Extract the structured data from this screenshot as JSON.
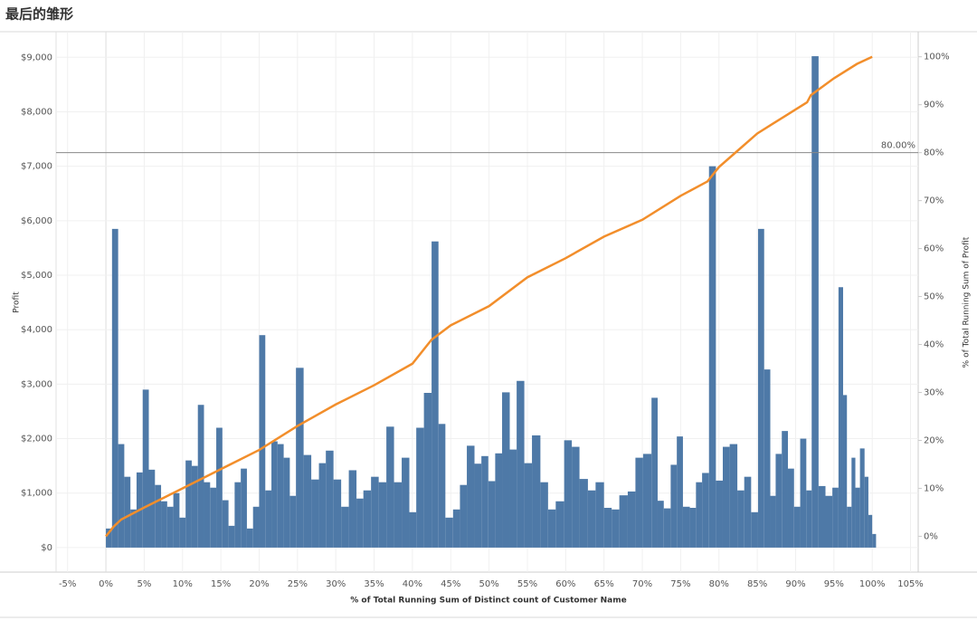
{
  "chart_data": {
    "type": "pareto",
    "title": "最后的雏形",
    "x_label": "% of Total Running Sum of Distinct count of Customer Name",
    "y_label": "Profit",
    "y2_label": "% of Total Running Sum of Profit",
    "xlim": [
      -6.5,
      106
    ],
    "ylim": [
      -450,
      9470
    ],
    "y2lim": [
      -7.47,
      105.23
    ],
    "grid": true,
    "xticks": [
      {
        "value": -5,
        "label": "-5%"
      },
      {
        "value": 0,
        "label": "0%"
      },
      {
        "value": 5,
        "label": "5%"
      },
      {
        "value": 10,
        "label": "10%"
      },
      {
        "value": 15,
        "label": "15%"
      },
      {
        "value": 20,
        "label": "20%"
      },
      {
        "value": 25,
        "label": "25%"
      },
      {
        "value": 30,
        "label": "30%"
      },
      {
        "value": 35,
        "label": "35%"
      },
      {
        "value": 40,
        "label": "40%"
      },
      {
        "value": 45,
        "label": "45%"
      },
      {
        "value": 50,
        "label": "50%"
      },
      {
        "value": 55,
        "label": "55%"
      },
      {
        "value": 60,
        "label": "60%"
      },
      {
        "value": 65,
        "label": "65%"
      },
      {
        "value": 70,
        "label": "70%"
      },
      {
        "value": 75,
        "label": "75%"
      },
      {
        "value": 80,
        "label": "80%"
      },
      {
        "value": 85,
        "label": "85%"
      },
      {
        "value": 90,
        "label": "90%"
      },
      {
        "value": 95,
        "label": "95%"
      },
      {
        "value": 100,
        "label": "100%"
      },
      {
        "value": 105,
        "label": "105%"
      }
    ],
    "yticks": [
      {
        "value": 0,
        "label": "$0"
      },
      {
        "value": 1000,
        "label": "$1,000"
      },
      {
        "value": 2000,
        "label": "$2,000"
      },
      {
        "value": 3000,
        "label": "$3,000"
      },
      {
        "value": 4000,
        "label": "$4,000"
      },
      {
        "value": 5000,
        "label": "$5,000"
      },
      {
        "value": 6000,
        "label": "$6,000"
      },
      {
        "value": 7000,
        "label": "$7,000"
      },
      {
        "value": 8000,
        "label": "$8,000"
      },
      {
        "value": 9000,
        "label": "$9,000"
      }
    ],
    "y2ticks": [
      {
        "value": 0,
        "label": "0%"
      },
      {
        "value": 10,
        "label": "10%"
      },
      {
        "value": 20,
        "label": "20%"
      },
      {
        "value": 30,
        "label": "30%"
      },
      {
        "value": 40,
        "label": "40%"
      },
      {
        "value": 50,
        "label": "50%"
      },
      {
        "value": 60,
        "label": "60%"
      },
      {
        "value": 70,
        "label": "70%"
      },
      {
        "value": 80,
        "label": "80%"
      },
      {
        "value": 90,
        "label": "90%"
      },
      {
        "value": 100,
        "label": "100%"
      }
    ],
    "reference_line": {
      "value": 80,
      "label": "80.00%",
      "axis": "y2"
    },
    "series": [
      {
        "name": "Profit",
        "type": "bar",
        "color": "#4e79a7",
        "x": [
          0.0,
          0.8,
          1.6,
          2.4,
          3.2,
          4.0,
          4.8,
          5.6,
          6.4,
          7.2,
          8.0,
          8.8,
          9.6,
          10.4,
          11.2,
          12.0,
          12.8,
          13.6,
          14.4,
          15.2,
          16.0,
          16.8,
          17.6,
          18.4,
          19.2,
          20.0,
          20.8,
          21.6,
          22.4,
          23.2,
          24.0,
          24.8,
          25.8,
          26.8,
          27.8,
          28.7,
          29.7,
          30.7,
          31.7,
          32.7,
          33.6,
          34.6,
          35.6,
          36.6,
          37.6,
          38.6,
          39.6,
          40.5,
          41.5,
          42.5,
          43.4,
          44.3,
          45.3,
          46.2,
          47.1,
          48.1,
          49.0,
          49.9,
          50.8,
          51.7,
          52.7,
          53.6,
          54.6,
          55.6,
          56.7,
          57.7,
          58.7,
          59.8,
          60.8,
          61.8,
          62.9,
          63.9,
          65.0,
          66.0,
          67.0,
          68.1,
          69.1,
          70.1,
          71.2,
          72.0,
          72.8,
          73.7,
          74.5,
          75.3,
          76.2,
          77.0,
          77.8,
          78.7,
          79.6,
          80.5,
          81.4,
          82.4,
          83.3,
          84.2,
          85.1,
          85.9,
          86.7,
          87.4,
          88.2,
          89.0,
          89.8,
          90.6,
          91.4,
          92.1,
          93.0,
          93.9,
          94.8,
          95.6,
          96.2,
          96.7,
          97.3,
          97.8,
          98.4,
          99.0,
          99.5,
          100.0
        ],
        "values": [
          350,
          5850,
          1900,
          1300,
          700,
          1380,
          2900,
          1430,
          1150,
          850,
          750,
          1000,
          550,
          1600,
          1500,
          2620,
          1200,
          1100,
          2200,
          870,
          400,
          1200,
          1450,
          350,
          750,
          3900,
          1050,
          1950,
          1900,
          1650,
          950,
          3300,
          1700,
          1250,
          1550,
          1780,
          1250,
          750,
          1420,
          900,
          1050,
          1300,
          1200,
          2220,
          1200,
          1650,
          650,
          2200,
          2840,
          5620,
          2270,
          550,
          700,
          1150,
          1870,
          1540,
          1680,
          1220,
          1730,
          2850,
          1800,
          3060,
          1550,
          2060,
          1200,
          700,
          850,
          1970,
          1850,
          1260,
          1050,
          1200,
          730,
          700,
          960,
          1030,
          1650,
          1720,
          2750,
          860,
          720,
          1520,
          2040,
          750,
          730,
          1200,
          1370,
          7000,
          1230,
          1850,
          1900,
          1050,
          1300,
          650,
          5850,
          3270,
          950,
          1720,
          2140,
          1450,
          750,
          2000,
          1050,
          9020,
          1130,
          950,
          1100,
          4780,
          2800,
          750,
          1650,
          1100,
          1820,
          1300,
          600,
          250
        ]
      },
      {
        "name": "% of Total Running Sum of Profit",
        "type": "line",
        "axis": "y2",
        "color": "#f28e2b",
        "x": [
          0,
          1,
          2,
          5,
          10,
          15,
          20,
          25,
          30,
          35,
          40,
          42.5,
          45,
          50,
          55,
          60,
          65,
          70,
          75,
          78.5,
          80,
          82.5,
          85,
          87,
          90,
          91.5,
          92,
          95,
          98,
          100
        ],
        "values": [
          0,
          2,
          3.5,
          6,
          10,
          14,
          18,
          23,
          27.5,
          31.5,
          36,
          41,
          44,
          48,
          54,
          58,
          62.5,
          66,
          71,
          74,
          77,
          80.5,
          84,
          86,
          89,
          90.5,
          92,
          95.5,
          98.5,
          100
        ]
      }
    ]
  }
}
